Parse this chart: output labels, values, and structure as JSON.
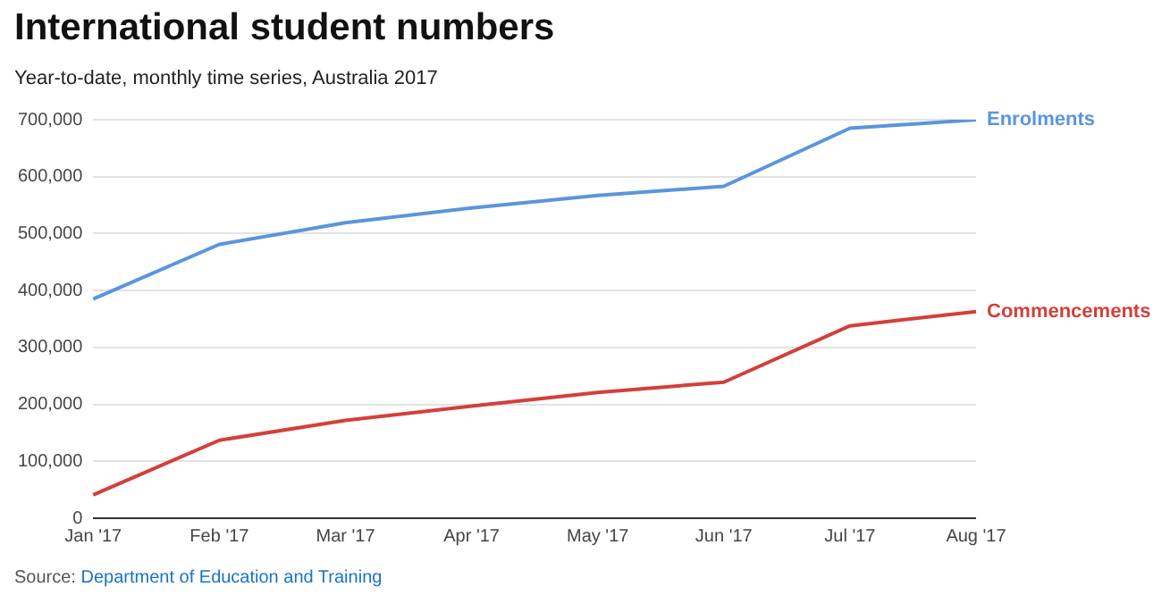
{
  "chart_data": {
    "type": "line",
    "title": "International student numbers",
    "subtitle": "Year-to-date, monthly time series, Australia 2017",
    "annotations": [
      "Source: Department of Education and Training"
    ],
    "categories": [
      "Jan '17",
      "Feb '17",
      "Mar '17",
      "Apr '17",
      "May '17",
      "Jun '17",
      "Jul '17",
      "Aug '17"
    ],
    "series": [
      {
        "name": "Enrolments",
        "color": "#5b95dd",
        "values": [
          385000,
          481000,
          519000,
          545000,
          567000,
          583000,
          685000,
          700000
        ]
      },
      {
        "name": "Commencements",
        "color": "#d43f3a",
        "values": [
          41000,
          137000,
          172000,
          197000,
          221000,
          239000,
          338000,
          363000
        ]
      }
    ],
    "ylim": [
      0,
      700000
    ],
    "yticks": [
      0,
      {
        "value": 100000,
        "label": "100,000"
      },
      {
        "value": 200000,
        "label": "200,000"
      },
      {
        "value": 300000,
        "label": "300,000"
      },
      {
        "value": 400000,
        "label": "400,000"
      },
      {
        "value": 500000,
        "label": "500,000"
      },
      {
        "value": 600000,
        "label": "600,000"
      },
      {
        "value": 700000,
        "label": "700,000"
      }
    ],
    "grid": "y",
    "legend": false,
    "marker": "none",
    "line_style": "solid"
  }
}
